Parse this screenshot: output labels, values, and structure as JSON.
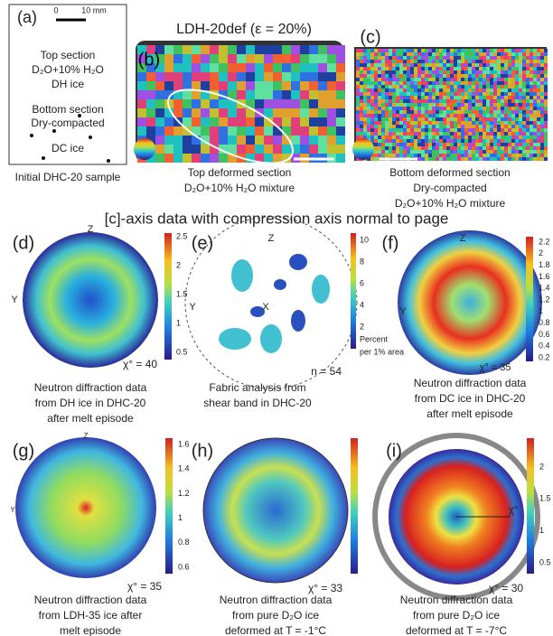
{
  "panels": {
    "a": {
      "label": "(a)",
      "scale": [
        "0",
        "10 mm"
      ],
      "top": [
        "Top section",
        "D₂O+10% H₂O",
        "DH ice"
      ],
      "bottom": [
        "Bottom section",
        "Dry-compacted",
        "DC ice"
      ],
      "caption": "Initial DHC-20 sample"
    },
    "b": {
      "label": "(b)",
      "title": "LDH-20def (ε = 20%)",
      "caption": [
        "Top deformed section",
        "D₂O+10% H₂O mixture"
      ]
    },
    "c": {
      "label": "(c)",
      "caption": [
        "Bottom deformed section",
        "Dry-compacted",
        "D₂O+10% H₂O mixture"
      ]
    },
    "d": {
      "label": "(d)",
      "axes": [
        "Z",
        "Y"
      ],
      "colorbar": [
        "2.5",
        "2",
        "1.5",
        "1",
        "0.5"
      ],
      "chi": "χ° = 40",
      "caption": [
        "Neutron diffraction data",
        "from DH ice in DHC-20",
        "after melt episode"
      ]
    },
    "e": {
      "label": "(e)",
      "axes": [
        "Z",
        "Y",
        "X"
      ],
      "colorbar": [
        "10",
        "8",
        "6",
        "4",
        "2"
      ],
      "unit": [
        "Percent",
        "per 1% area"
      ],
      "n": "n = 54",
      "caption": [
        "Fabric analysis from",
        "shear band in DHC-20"
      ]
    },
    "f": {
      "label": "(f)",
      "axes": [
        "Z",
        "Y"
      ],
      "colorbar": [
        "2.2",
        "2",
        "1.8",
        "1.6",
        "1.4",
        "1.2",
        "1",
        "0.8",
        "0.6",
        "0.4",
        "0.2"
      ],
      "chi": "χ° = 35",
      "caption": [
        "Neutron diffraction data",
        "from DC ice in DHC-20",
        "after melt episode"
      ]
    },
    "g": {
      "label": "(g)",
      "axes": [
        "Z",
        "Y"
      ],
      "colorbar": [
        "1.6",
        "1.4",
        "1.2",
        "1",
        "0.8",
        "0.6"
      ],
      "chi": "χ° = 35",
      "caption": [
        "Neutron diffraction data",
        "from LDH-35 ice after",
        "melt episode"
      ]
    },
    "h": {
      "label": "(h)",
      "chi": "χ° = 33",
      "caption": [
        "Neutron diffraction data",
        "from pure D₂O ice",
        "deformed at T = -1°C"
      ]
    },
    "i": {
      "label": "(i)",
      "colorbar": [
        "2",
        "1.5",
        "1",
        "0.5"
      ],
      "axis": "χ°",
      "chi": "χ° = 30",
      "caption": [
        "Neutron diffraction data",
        "from pure D₂O ice",
        "deformed at T = -7°C"
      ]
    }
  },
  "heading": "[c]-axis data with compression axis normal to page"
}
